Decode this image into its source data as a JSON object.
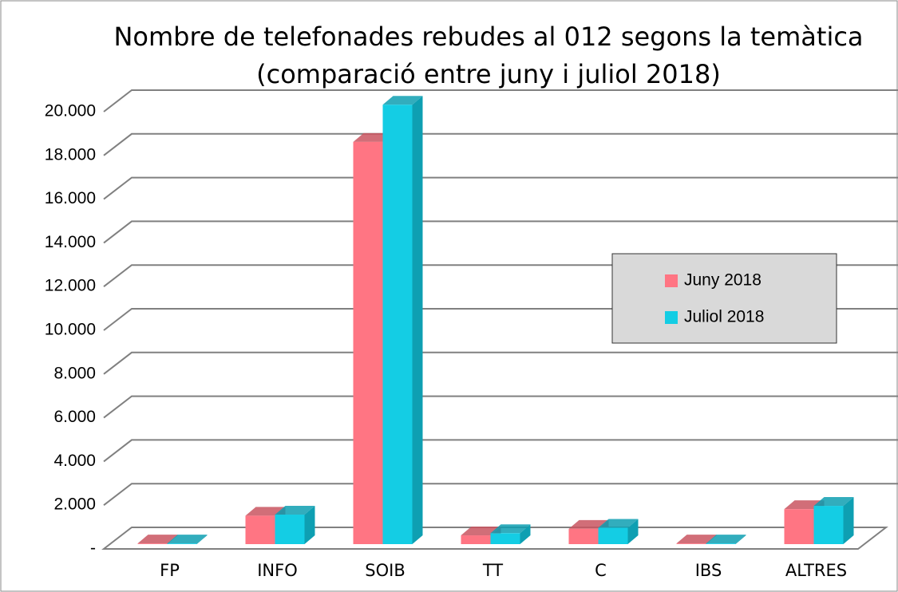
{
  "chart_data": {
    "type": "bar3d",
    "title": [
      "Nombre de telefonades rebudes al 012 segons la temàtica",
      "(comparació entre juny i juliol 2018)"
    ],
    "categories": [
      "FP",
      "INFO",
      "SOIB",
      "TT",
      "C",
      "IBS",
      "ALTRES"
    ],
    "series": [
      {
        "name": "Juny 2018",
        "color": "#ff7583",
        "side": "#c95560",
        "values": [
          30,
          1300,
          18400,
          400,
          700,
          30,
          1600
        ]
      },
      {
        "name": "Juliol 2018",
        "color": "#14cde4",
        "side": "#0e9fb2",
        "values": [
          30,
          1350,
          20100,
          500,
          750,
          30,
          1750
        ]
      }
    ],
    "ylim": [
      0,
      20000
    ],
    "yticks": [
      {
        "value": 0,
        "label": "-"
      },
      {
        "value": 2000,
        "label": "2.000"
      },
      {
        "value": 4000,
        "label": "4.000"
      },
      {
        "value": 6000,
        "label": "6.000"
      },
      {
        "value": 8000,
        "label": "8.000"
      },
      {
        "value": 10000,
        "label": "10.000"
      },
      {
        "value": 12000,
        "label": "12.000"
      },
      {
        "value": 14000,
        "label": "14.000"
      },
      {
        "value": 16000,
        "label": "16.000"
      },
      {
        "value": 18000,
        "label": "18.000"
      },
      {
        "value": 20000,
        "label": "20.000"
      }
    ],
    "grid": true
  }
}
